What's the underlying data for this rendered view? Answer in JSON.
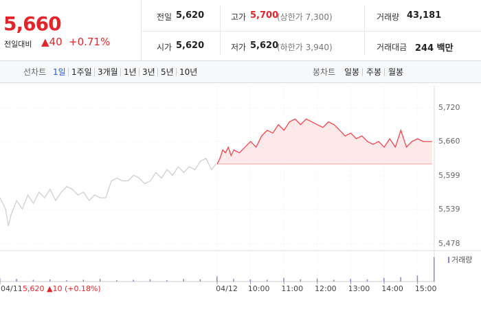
{
  "quote": {
    "price": "5,660",
    "change_label": "전일대비",
    "change": "▲40",
    "rate": "+0.71%"
  },
  "stats": [
    [
      {
        "label": "전일",
        "value": "5,620"
      },
      {
        "label": "고가",
        "value": "5,700",
        "note": "(상한가 7,300)"
      },
      {
        "label": "거래량",
        "value": "43,181"
      }
    ],
    [
      {
        "label": "시가",
        "value": "5,620"
      },
      {
        "label": "저가",
        "value": "5,620",
        "note": "(하한가 3,940)"
      },
      {
        "label": "거래대금",
        "value": "244 백만"
      }
    ]
  ],
  "tabs": {
    "line_label": "선차트",
    "line_periods": [
      "1일",
      "1주일",
      "3개월",
      "1년",
      "3년",
      "5년",
      "10년"
    ],
    "candle_label": "봉차트",
    "candle_periods": [
      "일봉",
      "주봉",
      "월봉"
    ]
  },
  "chart": {
    "type": "line",
    "ylim": [
      5466,
      5759
    ],
    "xlim": [
      0,
      780
    ],
    "grid": true,
    "yticks": [
      {
        "value": 5720,
        "label": "5,720"
      },
      {
        "value": 5660,
        "label": "5,660"
      },
      {
        "value": 5599,
        "label": "5,599"
      },
      {
        "value": 5539,
        "label": "5,539"
      },
      {
        "value": 5478,
        "label": "5,478"
      }
    ],
    "xticks": [
      {
        "value": 0,
        "label": "04/11"
      },
      {
        "value": 390,
        "label": "04/12"
      },
      {
        "value": 450,
        "label": "10:00"
      },
      {
        "value": 510,
        "label": "11:00"
      },
      {
        "value": 570,
        "label": "12:00"
      },
      {
        "value": 630,
        "label": "13:00"
      },
      {
        "value": 690,
        "label": "14:00"
      },
      {
        "value": 750,
        "label": "15:00"
      }
    ],
    "prev_day_note": "5,620 ▲10 (+0.18%)",
    "reference_line": 5620,
    "series": [
      {
        "color": "#cfcfcf",
        "x": [
          0,
          10,
          15,
          20,
          30,
          40,
          50,
          60,
          70,
          80,
          90,
          100,
          110,
          120,
          130,
          140,
          150,
          160,
          170,
          180,
          190,
          200,
          210,
          220,
          230,
          240,
          250,
          260,
          270,
          280,
          290,
          300,
          310,
          320,
          330,
          340,
          350,
          360,
          370,
          380,
          388
        ],
        "values": [
          5560,
          5540,
          5510,
          5530,
          5555,
          5540,
          5565,
          5550,
          5570,
          5560,
          5575,
          5555,
          5570,
          5580,
          5575,
          5565,
          5570,
          5555,
          5565,
          5560,
          5560,
          5590,
          5595,
          5590,
          5590,
          5600,
          5595,
          5585,
          5590,
          5605,
          5595,
          5610,
          5600,
          5615,
          5605,
          5615,
          5610,
          5625,
          5630,
          5610,
          5620
        ]
      },
      {
        "color": "#f2434a",
        "area": "#fde3e4",
        "x": [
          390,
          395,
          400,
          405,
          410,
          415,
          420,
          430,
          440,
          450,
          460,
          470,
          480,
          490,
          500,
          510,
          520,
          530,
          540,
          550,
          560,
          570,
          580,
          590,
          600,
          610,
          620,
          630,
          640,
          650,
          660,
          670,
          680,
          690,
          700,
          710,
          720,
          730,
          740,
          750,
          760,
          770,
          776
        ],
        "values": [
          5620,
          5630,
          5645,
          5640,
          5650,
          5635,
          5645,
          5640,
          5650,
          5660,
          5650,
          5670,
          5680,
          5675,
          5690,
          5680,
          5695,
          5700,
          5690,
          5700,
          5695,
          5690,
          5685,
          5695,
          5690,
          5680,
          5670,
          5675,
          5665,
          5670,
          5660,
          5655,
          5660,
          5650,
          5665,
          5650,
          5680,
          5650,
          5660,
          5665,
          5660,
          5660,
          5660
        ]
      }
    ],
    "volume": {
      "name": "거래량",
      "color": "#8a84c8",
      "ylim": [
        0,
        3000
      ],
      "x": [
        0,
        30,
        60,
        90,
        120,
        150,
        180,
        210,
        240,
        270,
        300,
        330,
        360,
        390,
        420,
        450,
        480,
        510,
        540,
        570,
        600,
        630,
        660,
        690,
        720,
        750,
        780
      ],
      "values": [
        400,
        300,
        200,
        250,
        150,
        200,
        300,
        150,
        200,
        250,
        150,
        300,
        250,
        600,
        300,
        250,
        200,
        400,
        250,
        350,
        200,
        300,
        250,
        400,
        500,
        700,
        2800
      ]
    }
  }
}
